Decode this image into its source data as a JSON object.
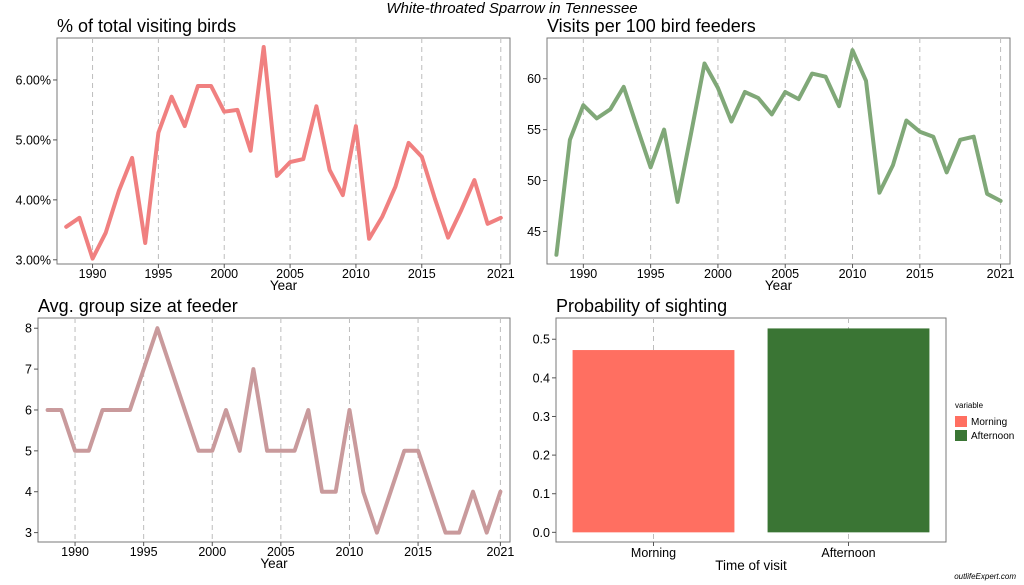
{
  "suptitle": "White-throated Sparrow in Tennessee",
  "credit": "outlifeExpert.com",
  "chart_data": [
    {
      "type": "line",
      "title": "% of total visiting birds",
      "xlabel": "Year",
      "ylabel": "",
      "color": "#F08080",
      "grid": "vertical dashed",
      "xlim": [
        1987.3,
        2021.7
      ],
      "ylim": [
        2.93,
        6.7
      ],
      "xticks": [
        1990,
        1995,
        2000,
        2005,
        2010,
        2015,
        2021
      ],
      "yticks": [
        3,
        4,
        5,
        6
      ],
      "ytick_labels": [
        "3.00%",
        "4.00%",
        "5.00%",
        "6.00%"
      ],
      "x": [
        1988,
        1989,
        1990,
        1991,
        1992,
        1993,
        1994,
        1995,
        1996,
        1997,
        1998,
        1999,
        2000,
        2001,
        2002,
        2003,
        2004,
        2005,
        2006,
        2007,
        2008,
        2009,
        2010,
        2011,
        2012,
        2013,
        2014,
        2015,
        2016,
        2017,
        2018,
        2019,
        2020,
        2021
      ],
      "values": [
        3.55,
        3.7,
        3.02,
        3.45,
        4.15,
        4.7,
        3.28,
        5.12,
        5.72,
        5.23,
        5.9,
        5.9,
        5.47,
        5.5,
        4.82,
        6.55,
        4.4,
        4.63,
        4.68,
        5.56,
        4.5,
        4.08,
        5.23,
        3.35,
        3.72,
        4.22,
        4.95,
        4.72,
        4.02,
        3.37,
        3.83,
        4.33,
        3.6,
        3.7
      ]
    },
    {
      "type": "line",
      "title": "Visits per 100 bird feeders",
      "xlabel": "Year",
      "ylabel": "",
      "color": "#80A878",
      "grid": "vertical dashed",
      "xlim": [
        1987.3,
        2021.7
      ],
      "ylim": [
        41.8,
        64.0
      ],
      "xticks": [
        1990,
        1995,
        2000,
        2005,
        2010,
        2015,
        2021
      ],
      "yticks": [
        45,
        50,
        55,
        60
      ],
      "ytick_labels": [
        "45",
        "50",
        "55",
        "60"
      ],
      "x": [
        1988,
        1989,
        1990,
        1991,
        1992,
        1993,
        1994,
        1995,
        1996,
        1997,
        1998,
        1999,
        2000,
        2001,
        2002,
        2003,
        2004,
        2005,
        2006,
        2007,
        2008,
        2009,
        2010,
        2011,
        2012,
        2013,
        2014,
        2015,
        2016,
        2017,
        2018,
        2019,
        2020,
        2021
      ],
      "values": [
        42.7,
        54.0,
        57.4,
        56.1,
        57.0,
        59.2,
        55.2,
        51.3,
        55.0,
        47.9,
        54.6,
        61.5,
        59.1,
        55.8,
        58.7,
        58.1,
        56.5,
        58.7,
        58.0,
        60.5,
        60.2,
        57.3,
        62.8,
        59.8,
        48.8,
        51.5,
        55.9,
        54.8,
        54.3,
        50.8,
        54.0,
        54.3,
        48.7,
        48.0
      ]
    },
    {
      "type": "line",
      "title": "Avg. group size at feeder",
      "xlabel": "Year",
      "ylabel": "",
      "color": "#C99A9C",
      "grid": "vertical dashed",
      "xlim": [
        1987.3,
        2021.7
      ],
      "ylim": [
        2.77,
        8.25
      ],
      "xticks": [
        1990,
        1995,
        2000,
        2005,
        2010,
        2015,
        2021
      ],
      "yticks": [
        3,
        4,
        5,
        6,
        7,
        8
      ],
      "ytick_labels": [
        "3",
        "4",
        "5",
        "6",
        "7",
        "8"
      ],
      "x": [
        1988,
        1989,
        1990,
        1991,
        1992,
        1993,
        1994,
        1995,
        1996,
        1997,
        1998,
        1999,
        2000,
        2001,
        2002,
        2003,
        2004,
        2005,
        2006,
        2007,
        2008,
        2009,
        2010,
        2011,
        2012,
        2013,
        2014,
        2015,
        2016,
        2017,
        2018,
        2019,
        2020,
        2021
      ],
      "values": [
        6,
        6,
        5,
        5,
        6,
        6,
        6,
        7,
        8,
        7,
        6,
        5,
        5,
        6,
        5,
        7,
        5,
        5,
        5,
        6,
        4,
        4,
        6,
        4,
        3,
        4,
        5,
        5,
        4,
        3,
        3,
        4,
        3,
        4
      ]
    },
    {
      "type": "bar",
      "title": "Probability of sighting",
      "xlabel": "Time of visit",
      "ylabel": "",
      "categories": [
        "Morning",
        "Afternoon"
      ],
      "values": [
        0.472,
        0.528
      ],
      "colors": [
        "#FF6F61",
        "#3A7534"
      ],
      "ylim": [
        -0.025,
        0.555
      ],
      "yticks": [
        0,
        0.1,
        0.2,
        0.3,
        0.4,
        0.5
      ],
      "ytick_labels": [
        "0.0",
        "0.1",
        "0.2",
        "0.3",
        "0.4",
        "0.5"
      ],
      "grid": "vertical dashed",
      "legend": {
        "title": "variable",
        "position": "right",
        "entries": [
          {
            "name": "Morning",
            "color": "#FF6F61"
          },
          {
            "name": "Afternoon",
            "color": "#3A7534"
          }
        ]
      }
    }
  ]
}
